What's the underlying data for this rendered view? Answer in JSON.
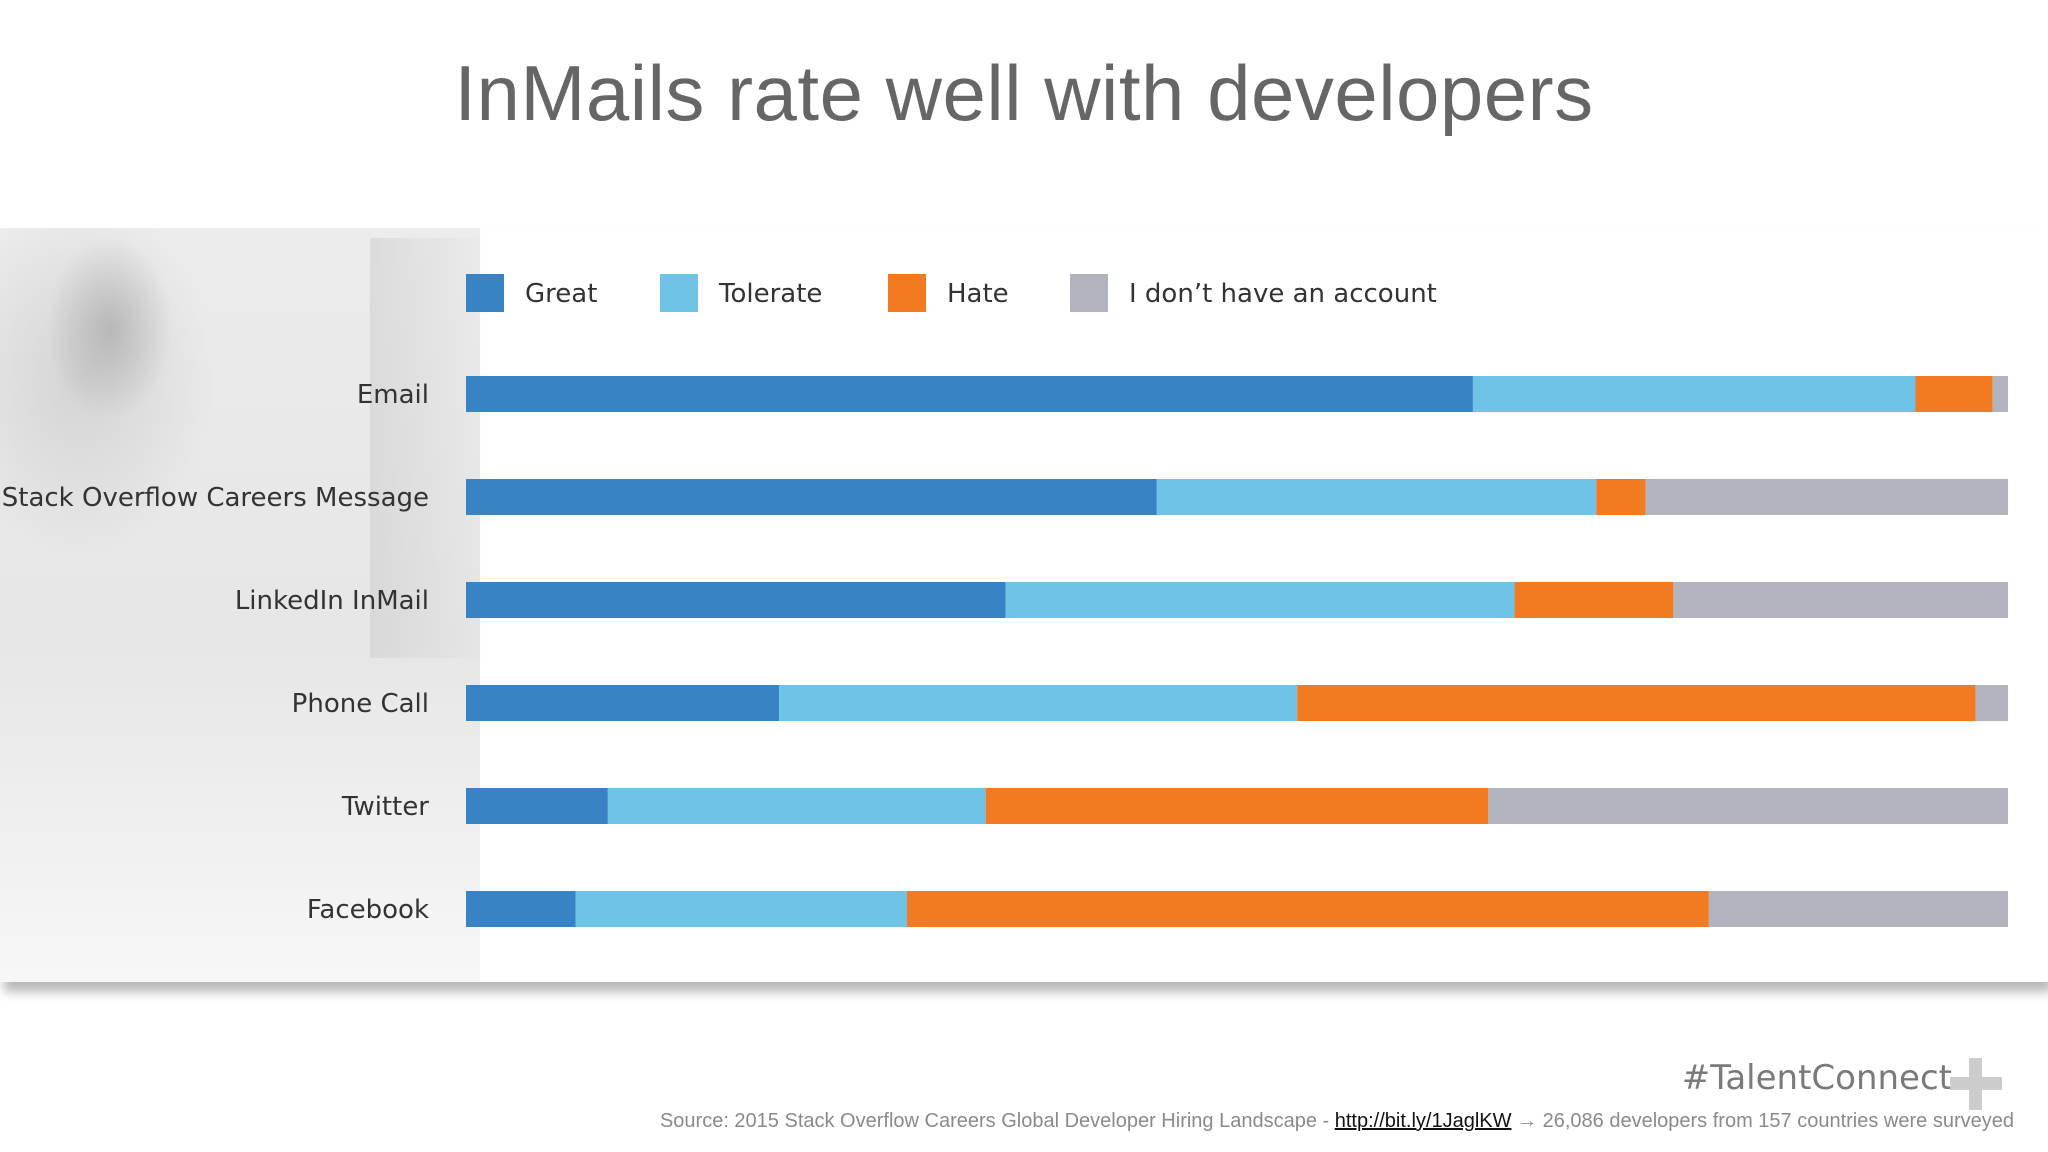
{
  "title": "InMails rate well with developers",
  "brand": "#TalentConnect",
  "source": {
    "prefix": "Source: 2015 Stack Overflow Careers Global Developer Hiring Landscape - ",
    "link": "http://bit.ly/1JaglKW",
    "arrow": "→",
    "suffix": "26,086 developers from 157 countries were surveyed"
  },
  "chart_data": {
    "type": "bar",
    "orientation": "horizontal",
    "stacked": true,
    "normalized": true,
    "categories": [
      "Email",
      "Stack Overflow Careers Message",
      "LinkedIn InMail",
      "Phone Call",
      "Twitter",
      "Facebook"
    ],
    "series": [
      {
        "name": "Great",
        "color": "#3a82c6",
        "values": [
          65.3,
          44.8,
          35.0,
          20.3,
          9.2,
          7.1
        ]
      },
      {
        "name": "Tolerate",
        "color": "#6ec3e7",
        "values": [
          28.7,
          28.5,
          33.0,
          33.6,
          24.5,
          21.5
        ]
      },
      {
        "name": "Hate",
        "color": "#f27a22",
        "values": [
          5.0,
          3.2,
          10.3,
          44.0,
          32.6,
          52.0
        ]
      },
      {
        "name": "I don’t have an account",
        "color": "#b1b4bd",
        "values": [
          1.0,
          23.5,
          21.7,
          2.1,
          33.7,
          19.4
        ]
      }
    ],
    "xlim": [
      0,
      100
    ],
    "legend": "top",
    "grid": false
  }
}
